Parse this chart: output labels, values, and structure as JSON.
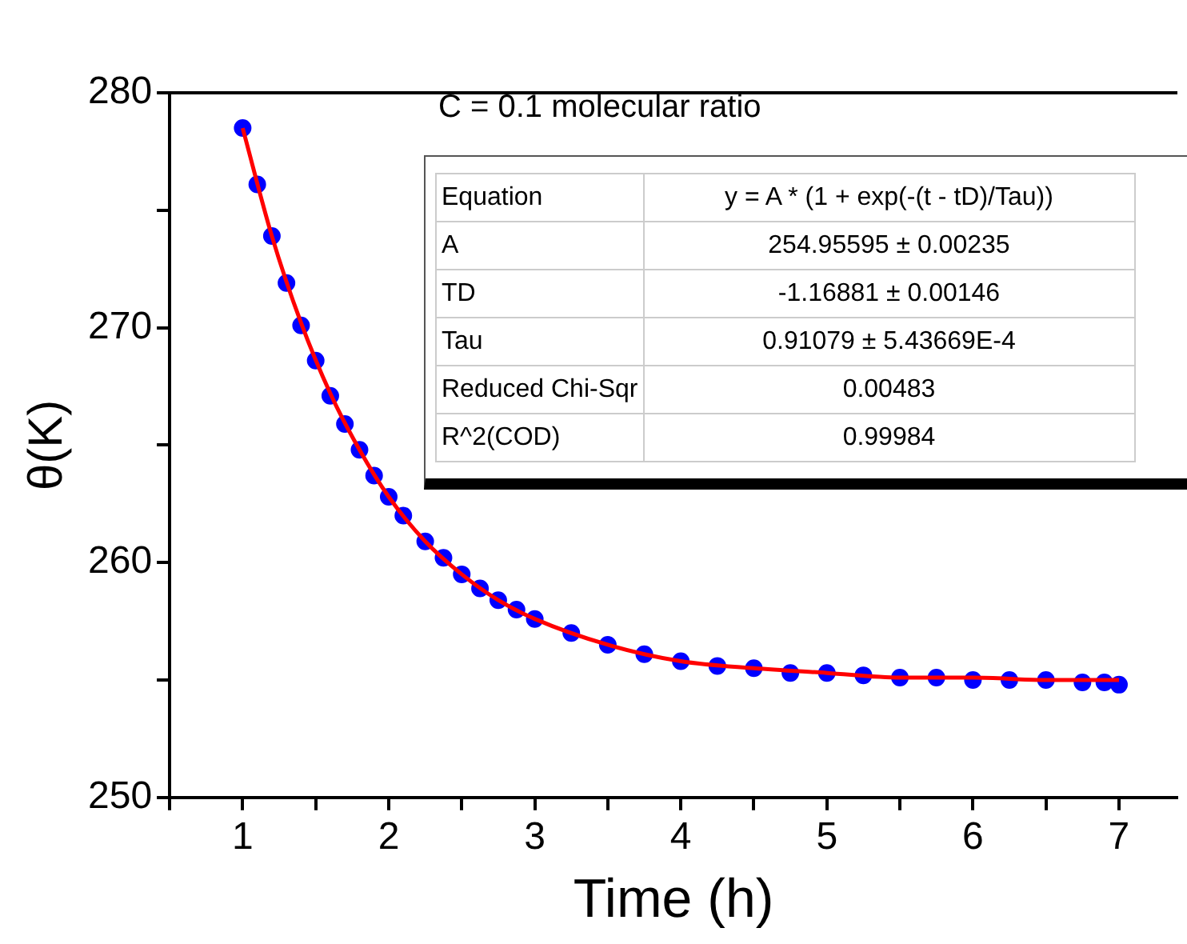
{
  "chart_data": {
    "type": "scatter",
    "xlabel": "Time (h)",
    "ylabel": "θ(K)",
    "xlim": [
      0.5,
      7.4
    ],
    "xticks": [
      {
        "value": 0.5,
        "label": null
      },
      1,
      {
        "value": 1.5,
        "label": null
      },
      2,
      {
        "value": 2.5,
        "label": null
      },
      3,
      {
        "value": 3.5,
        "label": null
      },
      4,
      {
        "value": 4.5,
        "label": null
      },
      5,
      {
        "value": 5.5,
        "label": null
      },
      6,
      {
        "value": 6.5,
        "label": null
      },
      7
    ],
    "ylim": [
      250,
      280
    ],
    "yticks": [
      250,
      {
        "value": 255,
        "label": null
      },
      260,
      {
        "value": 265,
        "label": null
      },
      270,
      {
        "value": 275,
        "label": null
      },
      280
    ],
    "grid": false,
    "legend": false,
    "marker": "circle",
    "series": [
      {
        "type": "scatter",
        "color": "#0000ff",
        "x": [
          1.0,
          1.1,
          1.2,
          1.3,
          1.4,
          1.5,
          1.6,
          1.7,
          1.8,
          1.9,
          2.0,
          2.1,
          2.25,
          2.375,
          2.5,
          2.625,
          2.75,
          2.875,
          3.0,
          3.25,
          3.5,
          3.75,
          4.0,
          4.25,
          4.5,
          4.75,
          5.0,
          5.25,
          5.5,
          5.75,
          6.0,
          6.25,
          6.5,
          6.75,
          6.9,
          7.0
        ],
        "values": [
          278.5,
          276.1,
          273.9,
          271.9,
          270.1,
          268.6,
          267.1,
          265.9,
          264.8,
          263.7,
          262.8,
          262.0,
          260.9,
          260.2,
          259.5,
          258.9,
          258.4,
          258.0,
          257.6,
          257.0,
          256.5,
          256.1,
          255.8,
          255.6,
          255.5,
          255.3,
          255.3,
          255.2,
          255.1,
          255.1,
          255.0,
          255.0,
          255.0,
          254.9,
          254.9,
          254.8
        ]
      },
      {
        "type": "line",
        "color": "#ff0000",
        "marker": "none",
        "line_style": "solid",
        "x": [
          1.0,
          1.2,
          1.4,
          1.6,
          1.8,
          2.0,
          2.25,
          2.5,
          2.75,
          3.0,
          3.5,
          4.0,
          4.5,
          5.0,
          5.5,
          6.0,
          6.5,
          7.0
        ],
        "values": [
          278.5,
          273.9,
          270.2,
          267.2,
          264.8,
          262.8,
          260.9,
          259.5,
          258.4,
          257.6,
          256.5,
          255.8,
          255.5,
          255.3,
          255.1,
          255.1,
          255.0,
          255.0
        ]
      }
    ],
    "annotations": [
      "C = 0.1 molecular ratio",
      "Equation",
      "y = A * (1 + exp(-(t - tD)/Tau))",
      "A",
      "254.95595 ± 0.00235",
      "TD",
      "-1.16881 ± 0.00146",
      "Tau",
      "0.91079 ± 5.43669E-4",
      "Reduced Chi-Sqr",
      "0.00483",
      "R^2(COD)",
      "0.99984"
    ]
  }
}
